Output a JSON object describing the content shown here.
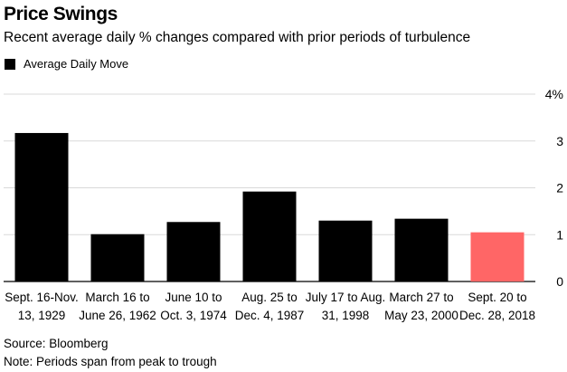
{
  "chart_data": {
    "type": "bar",
    "title": "Price Swings",
    "subtitle": "Recent average daily % changes compared with prior periods of turbulence",
    "legend": [
      "Average Daily Move"
    ],
    "categories": [
      [
        "Sept. 16-Nov.",
        "13, 1929"
      ],
      [
        "March 16 to",
        "June 26, 1962"
      ],
      [
        "June 10 to",
        "Oct. 3, 1974"
      ],
      [
        "Aug. 25 to",
        "Dec. 4, 1987"
      ],
      [
        "July 17 to Aug.",
        "31, 1998"
      ],
      [
        "March 27 to",
        "May 23, 2000"
      ],
      [
        "Sept. 20 to",
        "Dec. 28, 2018"
      ]
    ],
    "series": [
      {
        "name": "Average Daily Move",
        "values": [
          3.17,
          1.01,
          1.27,
          1.92,
          1.3,
          1.34,
          1.05
        ]
      }
    ],
    "bar_colors": [
      "#000000",
      "#000000",
      "#000000",
      "#000000",
      "#000000",
      "#000000",
      "#ff6666"
    ],
    "ylim": [
      0,
      4
    ],
    "yticks": [
      {
        "value": 0,
        "label": "0"
      },
      {
        "value": 1,
        "label": "1"
      },
      {
        "value": 2,
        "label": "2"
      },
      {
        "value": 3,
        "label": "3"
      },
      {
        "value": 4,
        "label": "4%"
      }
    ],
    "grid": true,
    "y_axis_position": "right",
    "legend_position": "top-left"
  },
  "footer": {
    "source": "Source: Bloomberg",
    "note": "Note: Periods span from peak to trough"
  }
}
